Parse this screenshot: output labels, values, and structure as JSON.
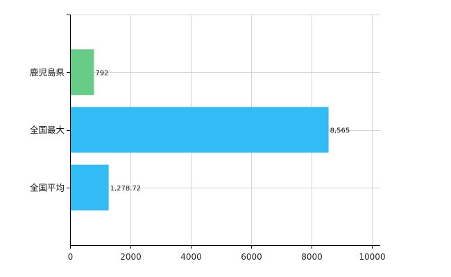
{
  "colors": {
    "grid": "#d4d4d4",
    "axis": "#000000",
    "highlight": "#66cc88",
    "default": "#33bbf5"
  },
  "chart_data": {
    "type": "bar",
    "orientation": "horizontal",
    "categories": [
      "鹿児島県",
      "全国最大",
      "全国平均"
    ],
    "values": [
      792,
      8565,
      1278.72
    ],
    "value_labels": [
      "792",
      "8,565",
      "1,278.72"
    ],
    "bar_colors": [
      "#66cc88",
      "#33bbf5",
      "#33bbf5"
    ],
    "xlim": [
      0,
      10000
    ],
    "xticks": [
      0,
      2000,
      4000,
      6000,
      8000,
      10000
    ],
    "xtick_labels": [
      "0",
      "2000",
      "4000",
      "6000",
      "8000",
      "10000"
    ],
    "title": "",
    "xlabel": "",
    "ylabel": "",
    "grid": true,
    "legend": "none"
  }
}
